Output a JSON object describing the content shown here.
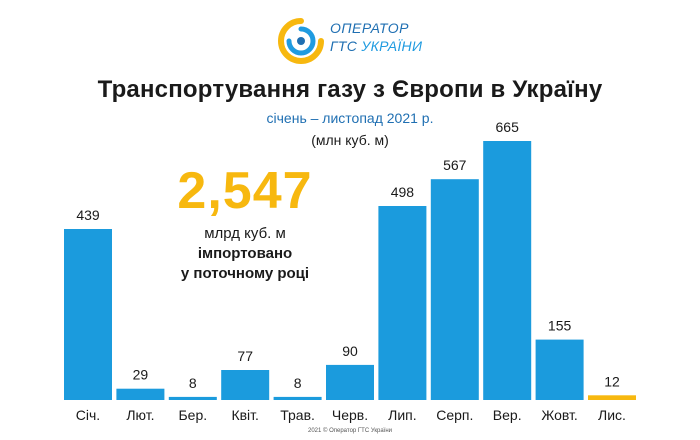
{
  "logo": {
    "line1": "ОПЕРАТОР",
    "line2a": "ГТС ",
    "line2b": "УКРАЇНИ"
  },
  "header": {
    "title": "Транспортування газу з Європи в Україну",
    "subtitle": "січень – листопад 2021 р.",
    "unit": "(млн куб. м)"
  },
  "callout": {
    "value": "2,547",
    "line1": "млрд куб. м",
    "line2": "імпортовано",
    "line3": "у поточному році"
  },
  "footer": "2021 © Оператор ГТС України",
  "colors": {
    "bar": "#1b9bdd",
    "highlight_bar": "#f7b80f",
    "callout": "#f7b80f",
    "logo_blue": "#1f6fb2"
  },
  "chart_data": {
    "type": "bar",
    "title": "Транспортування газу з Європи в Україну",
    "subtitle": "січень – листопад 2021 р.",
    "ylabel": "(млн куб. м)",
    "categories": [
      "Січ.",
      "Лют.",
      "Бер.",
      "Квіт.",
      "Трав.",
      "Черв.",
      "Лип.",
      "Серп.",
      "Вер.",
      "Жовт.",
      "Лис."
    ],
    "values": [
      439,
      29,
      8,
      77,
      8,
      90,
      498,
      567,
      665,
      155,
      12
    ],
    "highlight_index": 10,
    "ylim": [
      0,
      665
    ],
    "grid": false,
    "legend": "none"
  }
}
